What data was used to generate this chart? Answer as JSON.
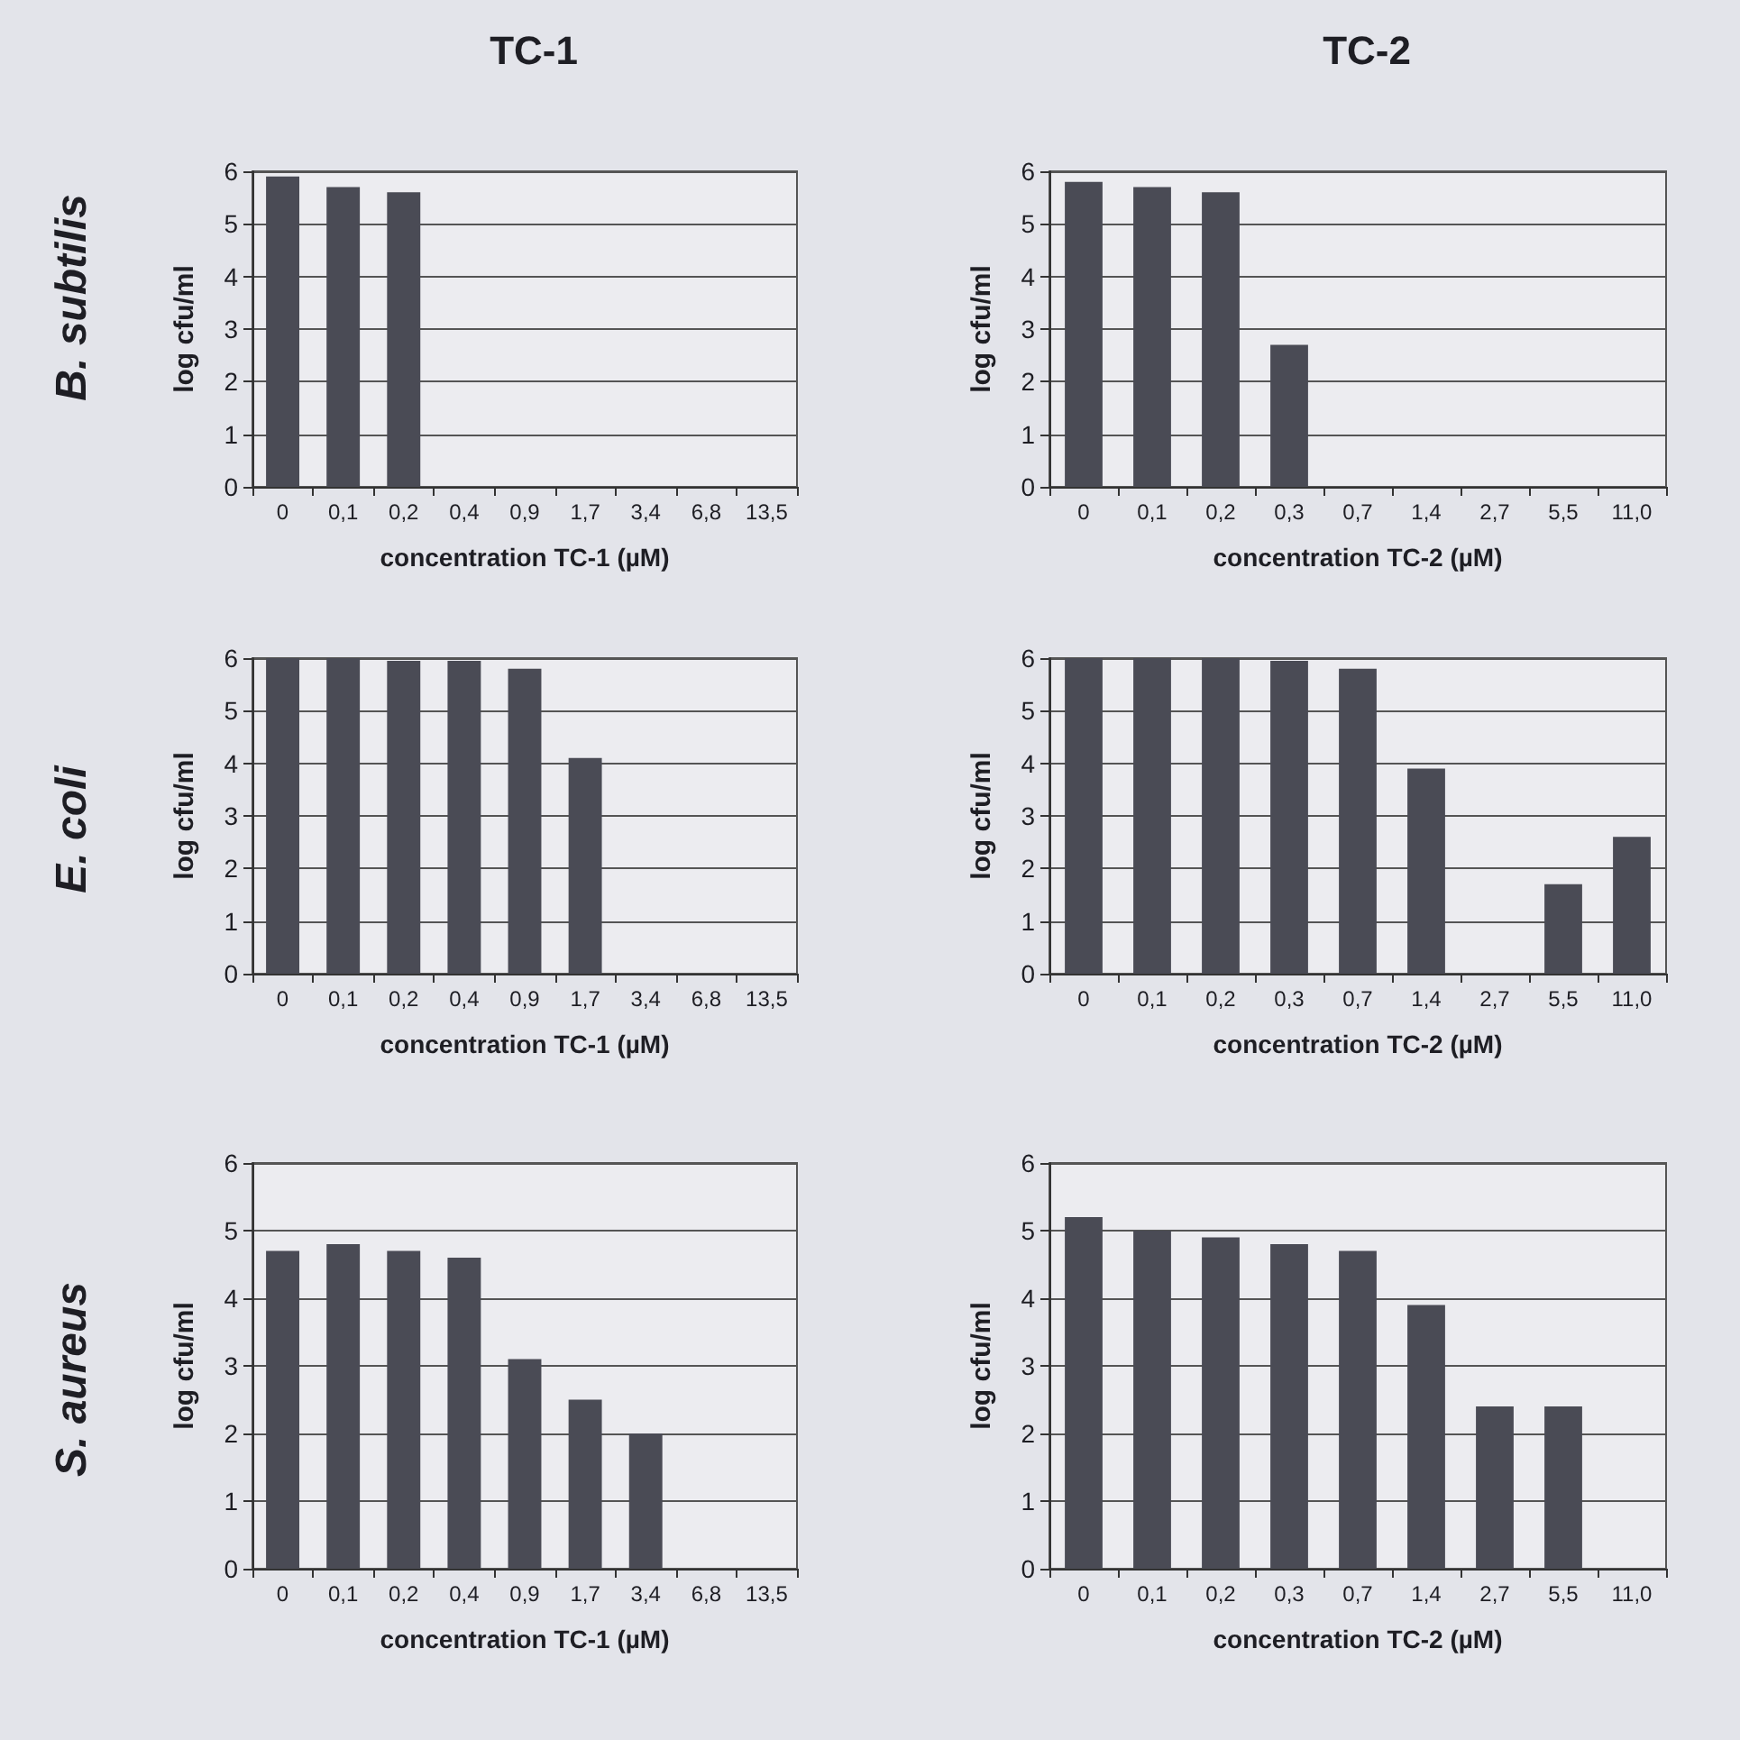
{
  "chart_data": [
    {
      "type": "bar",
      "title": "TC-1",
      "annotations": [
        "B. subtilis"
      ],
      "xlabel": "concentration TC-1 (µM)",
      "ylabel": "log cfu/ml",
      "categories": [
        "0",
        "0,1",
        "0,2",
        "0,4",
        "0,9",
        "1,7",
        "3,4",
        "6,8",
        "13,5"
      ],
      "values": [
        5.9,
        5.7,
        5.6,
        0,
        0,
        0,
        0,
        0,
        0
      ],
      "color": "#4a4b55",
      "ylim": [
        0,
        6
      ],
      "yticks": [
        0,
        1,
        2,
        3,
        4,
        5,
        6
      ],
      "grid": "y"
    },
    {
      "type": "bar",
      "title": "TC-2",
      "xlabel": "concentration TC-2 (µM)",
      "ylabel": "log cfu/ml",
      "categories": [
        "0",
        "0,1",
        "0,2",
        "0,3",
        "0,7",
        "1,4",
        "2,7",
        "5,5",
        "11,0"
      ],
      "values": [
        5.8,
        5.7,
        5.6,
        2.7,
        0,
        0,
        0,
        0,
        0
      ],
      "color": "#4a4b55",
      "ylim": [
        0,
        6
      ],
      "yticks": [
        0,
        1,
        2,
        3,
        4,
        5,
        6
      ],
      "grid": "y"
    },
    {
      "type": "bar",
      "annotations": [
        "E. coli"
      ],
      "xlabel": "concentration TC-1 (µM)",
      "ylabel": "log cfu/ml",
      "categories": [
        "0",
        "0,1",
        "0,2",
        "0,4",
        "0,9",
        "1,7",
        "3,4",
        "6,8",
        "13,5"
      ],
      "values": [
        6.0,
        6.0,
        5.95,
        5.95,
        5.8,
        4.1,
        0,
        0,
        0
      ],
      "color": "#4a4b55",
      "ylim": [
        0,
        6
      ],
      "yticks": [
        0,
        1,
        2,
        3,
        4,
        5,
        6
      ],
      "grid": "y"
    },
    {
      "type": "bar",
      "xlabel": "concentration TC-2 (µM)",
      "ylabel": "log cfu/ml",
      "categories": [
        "0",
        "0,1",
        "0,2",
        "0,3",
        "0,7",
        "1,4",
        "2,7",
        "5,5",
        "11,0"
      ],
      "values": [
        6.0,
        6.0,
        6.0,
        5.95,
        5.8,
        3.9,
        0,
        1.7,
        2.6
      ],
      "color": "#4a4b55",
      "ylim": [
        0,
        6
      ],
      "yticks": [
        0,
        1,
        2,
        3,
        4,
        5,
        6
      ],
      "grid": "y"
    },
    {
      "type": "bar",
      "annotations": [
        "S. aureus"
      ],
      "xlabel": "concentration TC-1 (µM)",
      "ylabel": "log cfu/ml",
      "categories": [
        "0",
        "0,1",
        "0,2",
        "0,4",
        "0,9",
        "1,7",
        "3,4",
        "6,8",
        "13,5"
      ],
      "values": [
        4.7,
        4.8,
        4.7,
        4.6,
        3.1,
        2.5,
        2.0,
        0,
        0
      ],
      "color": "#4a4b55",
      "ylim": [
        0,
        6
      ],
      "yticks": [
        0,
        1,
        2,
        3,
        4,
        5,
        6
      ],
      "grid": "y"
    },
    {
      "type": "bar",
      "xlabel": "concentration TC-2 (µM)",
      "ylabel": "log cfu/ml",
      "categories": [
        "0",
        "0,1",
        "0,2",
        "0,3",
        "0,7",
        "1,4",
        "2,7",
        "5,5",
        "11,0"
      ],
      "values": [
        5.2,
        5.0,
        4.9,
        4.8,
        4.7,
        3.9,
        2.4,
        2.4,
        0
      ],
      "color": "#4a4b55",
      "ylim": [
        0,
        6
      ],
      "yticks": [
        0,
        1,
        2,
        3,
        4,
        5,
        6
      ],
      "grid": "y"
    }
  ]
}
